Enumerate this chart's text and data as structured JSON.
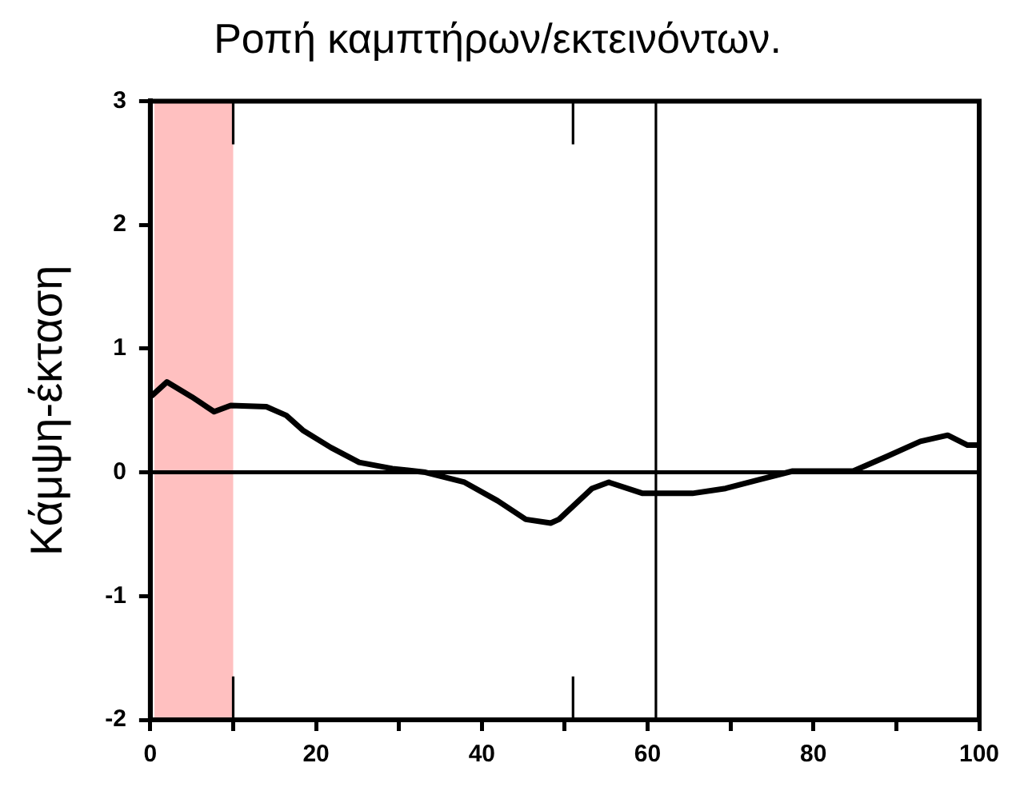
{
  "chart_data": {
    "type": "line",
    "title": "Ροπή καμπτήρων/εκτεινόντων.",
    "ylabel": "Κάμψη-έκταση",
    "x": [
      0.2,
      2,
      5,
      7.7,
      9.7,
      14,
      16.4,
      18.4,
      21.8,
      25.2,
      29.2,
      33.2,
      37.9,
      41.9,
      45.3,
      48.3,
      49.3,
      53.3,
      55.3,
      59.4,
      65.4,
      69.4,
      73.4,
      77.5,
      84.8,
      88.9,
      92.9,
      96.2,
      98.6,
      99.9
    ],
    "values": [
      0.62,
      0.73,
      0.61,
      0.49,
      0.54,
      0.53,
      0.46,
      0.34,
      0.2,
      0.08,
      0.03,
      0,
      -0.08,
      -0.23,
      -0.38,
      -0.41,
      -0.38,
      -0.13,
      -0.08,
      -0.17,
      -0.17,
      -0.13,
      -0.06,
      0.01,
      0.01,
      0.13,
      0.25,
      0.3,
      0.22,
      0.22
    ],
    "color": "#000000",
    "marker": "none",
    "xlim": [
      0,
      100
    ],
    "ylim": [
      -2,
      3
    ],
    "xticks": [
      0,
      {
        "value": 10,
        "label": null
      },
      20,
      {
        "value": 30,
        "label": null
      },
      40,
      {
        "value": 50,
        "label": null
      },
      60,
      {
        "value": 70,
        "label": null
      },
      80,
      {
        "value": 90,
        "label": null
      },
      100
    ],
    "yticks": [
      -2,
      -1,
      0,
      1,
      2,
      3
    ],
    "bands": [
      {
        "axis": "x",
        "from": 0.5,
        "to": 10,
        "color": "#ffc0c0"
      }
    ],
    "ref_lines": [
      {
        "axis": "y",
        "value": 0,
        "color": "#000000"
      },
      {
        "axis": "x",
        "value": 61,
        "color": "#000000"
      },
      {
        "axis": "x",
        "value": 10,
        "color": "#000000",
        "line_style": "dashed"
      },
      {
        "axis": "x",
        "value": 51,
        "color": "#000000",
        "line_style": "dashed"
      }
    ]
  }
}
